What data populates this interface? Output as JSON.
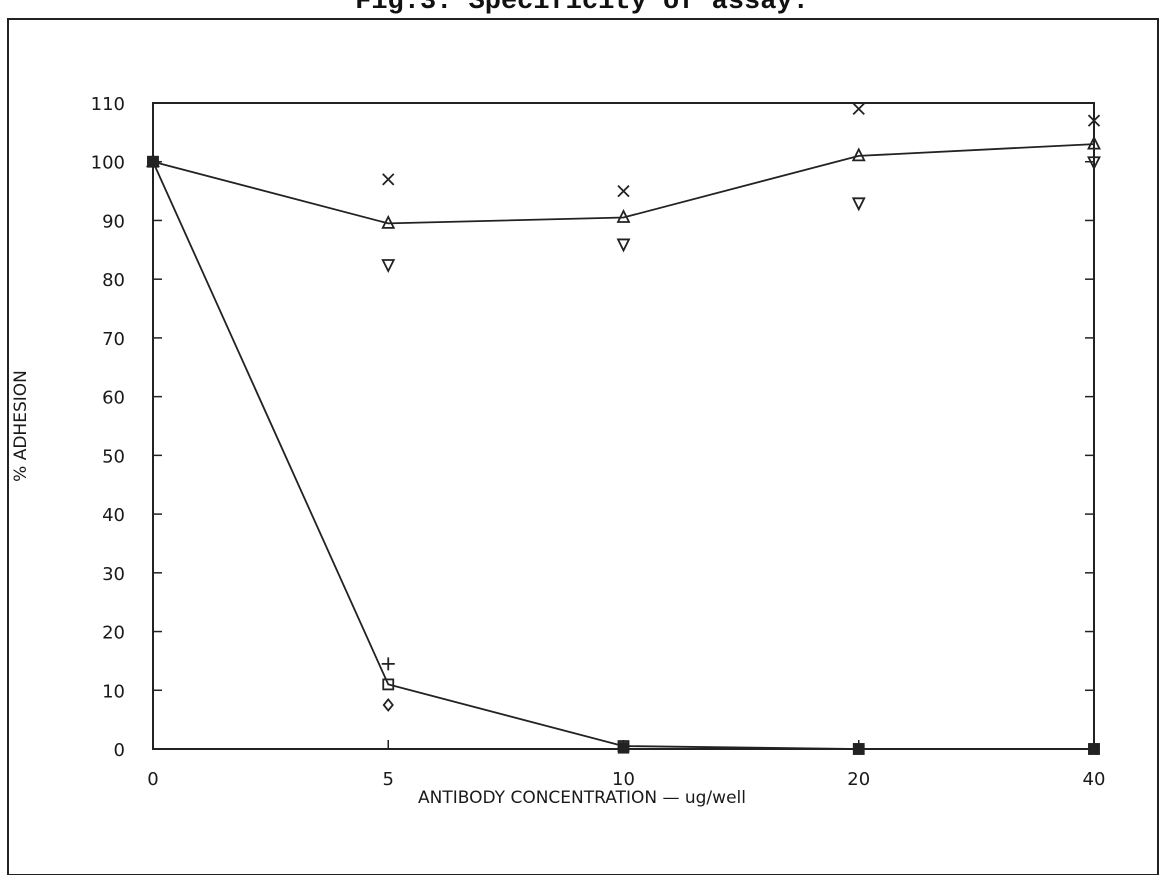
{
  "chart_data": {
    "type": "scatter",
    "title": "Fig.3. Specificity of assay.",
    "xlabel": "ANTIBODY CONCENTRATION — ug/well",
    "ylabel": "% ADHESION",
    "x_categories": [
      "0",
      "5",
      "10",
      "20",
      "40"
    ],
    "yticks": [
      "0",
      "10",
      "20",
      "30",
      "40",
      "50",
      "60",
      "70",
      "80",
      "90",
      "100",
      "110"
    ],
    "ylim": [
      0,
      110
    ],
    "grid": false,
    "series": [
      {
        "marker": "triangle-up",
        "line": true,
        "points": [
          [
            0,
            100
          ],
          [
            5,
            89.5
          ],
          [
            10,
            90.5
          ],
          [
            20,
            101
          ],
          [
            40,
            103
          ]
        ]
      },
      {
        "marker": "x",
        "line": false,
        "points": [
          [
            5,
            97
          ],
          [
            10,
            95
          ],
          [
            20,
            109
          ],
          [
            40,
            107
          ]
        ]
      },
      {
        "marker": "triangle-down",
        "line": false,
        "points": [
          [
            5,
            82.5
          ],
          [
            10,
            86
          ],
          [
            20,
            93
          ],
          [
            40,
            100
          ]
        ]
      },
      {
        "marker": "square-open",
        "line": true,
        "points": [
          [
            0,
            100
          ],
          [
            5,
            11
          ],
          [
            10,
            0.5
          ],
          [
            20,
            0
          ],
          [
            40,
            0
          ]
        ]
      },
      {
        "marker": "plus",
        "line": false,
        "points": [
          [
            5,
            14.5
          ]
        ]
      },
      {
        "marker": "diamond",
        "line": false,
        "points": [
          [
            5,
            7.5
          ]
        ]
      },
      {
        "marker": "square-filled",
        "line": false,
        "points": [
          [
            0,
            100
          ],
          [
            10,
            0.2
          ],
          [
            20,
            0
          ],
          [
            40,
            0
          ]
        ]
      }
    ]
  }
}
